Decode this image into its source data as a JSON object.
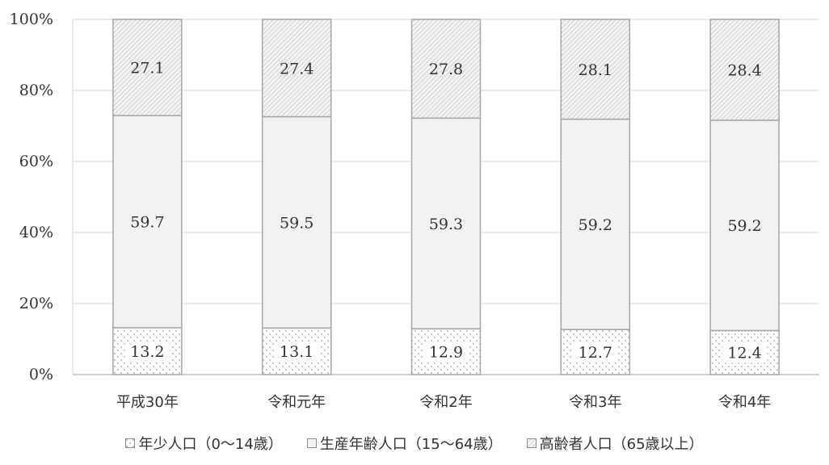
{
  "chart_data": {
    "type": "bar",
    "stacked": true,
    "categories": [
      "平成30年",
      "令和元年",
      "令和2年",
      "令和3年",
      "令和4年"
    ],
    "series": [
      {
        "name": "年少人口（0～14歳）",
        "values": [
          13.2,
          13.1,
          12.9,
          12.7,
          12.4
        ],
        "pattern": "dots"
      },
      {
        "name": "生産年齢人口（15～64歳）",
        "values": [
          59.7,
          59.5,
          59.3,
          59.2,
          59.2
        ],
        "pattern": "solid"
      },
      {
        "name": "高齢者人口（65歳以上）",
        "values": [
          27.1,
          27.4,
          27.8,
          28.1,
          28.4
        ],
        "pattern": "hatch"
      }
    ],
    "yticks": [
      "0%",
      "20%",
      "40%",
      "60%",
      "80%",
      "100%"
    ],
    "ylim": [
      0,
      100
    ],
    "grid": true,
    "legend_position": "bottom",
    "colors": {
      "bar_fill": "#f2f2f2",
      "bar_stroke": "#a6a6a6",
      "grid": "#d9d9d9",
      "text": "#333333"
    }
  }
}
